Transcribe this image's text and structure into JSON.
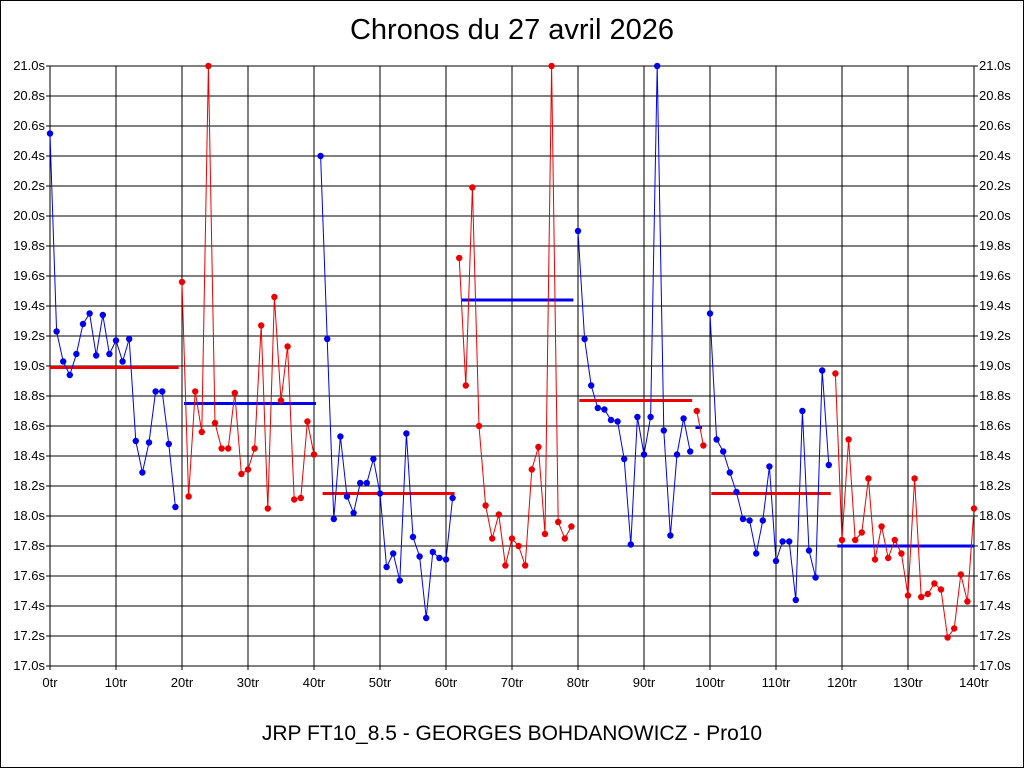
{
  "chart_data": {
    "type": "line",
    "title": "Chronos du 27 avril 2026",
    "subtitle": "JRP FT10_8.5 - GEORGES BOHDANOWICZ - Pro10",
    "xlim": [
      0,
      140
    ],
    "ylim": [
      17.0,
      21.0
    ],
    "x_ticks": [
      0,
      10,
      20,
      30,
      40,
      50,
      60,
      70,
      80,
      90,
      100,
      110,
      120,
      130,
      140
    ],
    "x_tick_labels": [
      "0tr",
      "10tr",
      "20tr",
      "30tr",
      "40tr",
      "50tr",
      "60tr",
      "70tr",
      "80tr",
      "90tr",
      "100tr",
      "110tr",
      "120tr",
      "130tr",
      "140tr"
    ],
    "y_ticks": [
      17.0,
      17.2,
      17.4,
      17.6,
      17.8,
      18.0,
      18.2,
      18.4,
      18.6,
      18.8,
      19.0,
      19.2,
      19.4,
      19.6,
      19.8,
      20.0,
      20.2,
      20.4,
      20.6,
      20.8,
      21.0
    ],
    "y_tick_labels": [
      "17.0s",
      "17.2s",
      "17.4s",
      "17.6s",
      "17.8s",
      "18.0s",
      "18.2s",
      "18.4s",
      "18.6s",
      "18.8s",
      "19.0s",
      "19.2s",
      "19.4s",
      "19.6s",
      "19.8s",
      "20.0s",
      "20.2s",
      "20.4s",
      "20.6s",
      "20.8s",
      "21.0s"
    ],
    "grid": true,
    "colors": {
      "blue": "#0000ee",
      "red": "#ee0000"
    },
    "series": [
      {
        "color": "blue",
        "x": [
          0,
          1,
          2,
          3,
          4,
          5,
          6,
          7,
          8,
          9,
          10,
          11,
          12,
          13,
          14,
          15,
          16,
          17,
          18,
          19
        ],
        "values": [
          20.55,
          19.23,
          19.03,
          18.94,
          19.08,
          19.28,
          19.35,
          19.07,
          19.34,
          19.08,
          19.17,
          19.03,
          19.18,
          18.5,
          18.29,
          18.49,
          18.83,
          18.83,
          18.48,
          18.06
        ]
      },
      {
        "color": "red",
        "x": [
          20,
          21,
          22,
          23,
          24,
          25,
          26,
          27,
          28,
          29,
          30,
          31,
          32,
          33,
          34,
          35,
          36,
          37,
          38,
          39,
          40
        ],
        "values": [
          19.56,
          18.13,
          18.83,
          18.56,
          21.0,
          18.62,
          18.45,
          18.45,
          18.82,
          18.28,
          18.31,
          18.45,
          19.27,
          18.05,
          19.46,
          18.77,
          19.13,
          18.11,
          18.12,
          18.63,
          18.41
        ]
      },
      {
        "color": "blue",
        "x": [
          41,
          42,
          43,
          44,
          45,
          46,
          47,
          48,
          49,
          50,
          51,
          52,
          53,
          54,
          55,
          56,
          57,
          58,
          59,
          60,
          61
        ],
        "values": [
          20.4,
          19.18,
          17.98,
          18.53,
          18.13,
          18.02,
          18.22,
          18.22,
          18.38,
          18.15,
          17.66,
          17.75,
          17.57,
          18.55,
          17.86,
          17.73,
          17.32,
          17.76,
          17.72,
          17.71,
          18.12
        ]
      },
      {
        "color": "red",
        "x": [
          62,
          63,
          64,
          65,
          66,
          67,
          68,
          69,
          70,
          71,
          72,
          73,
          74,
          75,
          76,
          77,
          78,
          79
        ],
        "values": [
          19.72,
          18.87,
          20.19,
          18.6,
          18.07,
          17.85,
          18.01,
          17.67,
          17.85,
          17.8,
          17.67,
          18.31,
          18.46,
          17.88,
          21.0,
          17.96,
          17.85,
          17.93
        ]
      },
      {
        "color": "blue",
        "x": [
          80,
          81,
          82,
          83,
          84,
          85,
          86,
          87,
          88,
          89,
          90,
          91,
          92,
          93,
          94,
          95,
          96,
          97
        ],
        "values": [
          19.9,
          19.18,
          18.87,
          18.72,
          18.71,
          18.64,
          18.63,
          18.38,
          17.81,
          18.66,
          18.41,
          18.66,
          21.0,
          18.57,
          17.87,
          18.41,
          18.65,
          18.43
        ]
      },
      {
        "color": "red",
        "x": [
          98,
          99
        ],
        "values": [
          18.7,
          18.47
        ]
      },
      {
        "color": "blue",
        "x": [
          100,
          101,
          102,
          103,
          104,
          105,
          106,
          107,
          108,
          109,
          110,
          111,
          112,
          113,
          114,
          115,
          116,
          117,
          118
        ],
        "values": [
          19.35,
          18.51,
          18.43,
          18.29,
          18.16,
          17.98,
          17.97,
          17.75,
          17.97,
          18.33,
          17.7,
          17.83,
          17.83,
          17.44,
          18.7,
          17.77,
          17.59,
          18.97,
          18.34
        ]
      },
      {
        "color": "red",
        "x": [
          119,
          120,
          121,
          122,
          123,
          124,
          125,
          126,
          127,
          128,
          129,
          130,
          131,
          132,
          133,
          134,
          135,
          136,
          137,
          138,
          139,
          140
        ],
        "values": [
          18.95,
          17.84,
          18.51,
          17.84,
          17.89,
          18.25,
          17.71,
          17.93,
          17.72,
          17.84,
          17.75,
          17.47,
          18.25,
          17.46,
          17.48,
          17.55,
          17.51,
          17.19,
          17.25,
          17.61,
          17.43,
          18.05
        ]
      }
    ],
    "averages": [
      {
        "color": "red",
        "x": [
          0,
          19.5
        ],
        "value": 18.99
      },
      {
        "color": "blue",
        "x": [
          20.3,
          40.3
        ],
        "value": 18.75
      },
      {
        "color": "red",
        "x": [
          41.3,
          61.3
        ],
        "value": 18.15
      },
      {
        "color": "blue",
        "x": [
          62.3,
          79.3
        ],
        "value": 19.44
      },
      {
        "color": "red",
        "x": [
          80.2,
          97.3
        ],
        "value": 18.77
      },
      {
        "color": "blue",
        "x": [
          97.8,
          98.8
        ],
        "value": 18.59
      },
      {
        "color": "red",
        "x": [
          100.2,
          118.3
        ],
        "value": 18.15
      },
      {
        "color": "blue",
        "x": [
          119.3,
          140
        ],
        "value": 17.8
      }
    ]
  }
}
